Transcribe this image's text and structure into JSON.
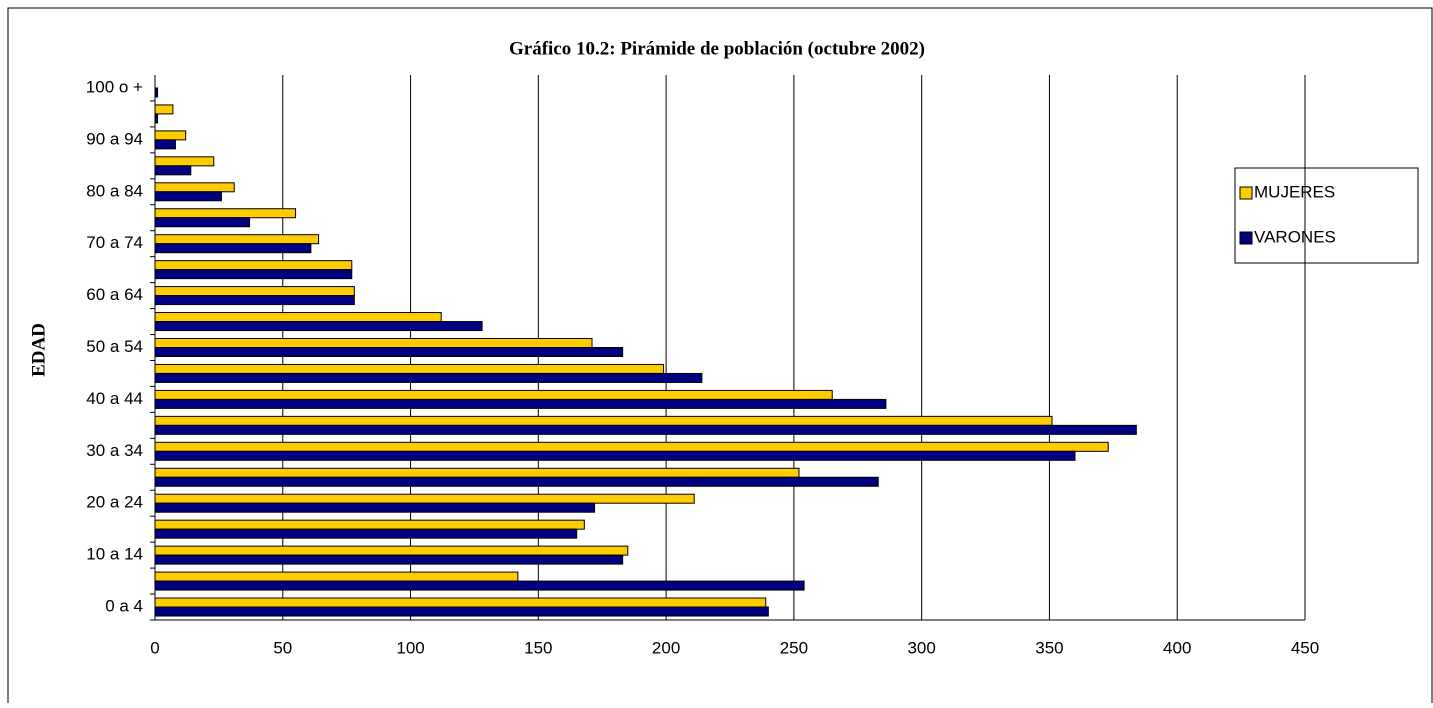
{
  "chart_data": {
    "type": "bar",
    "orientation": "horizontal",
    "title": "Gráfico 10.2: Pirámide de población (octubre 2002)",
    "y_label": "EDAD",
    "categories": [
      "0 a 4",
      null,
      "10 a 14",
      null,
      "20 a 24",
      null,
      "30 a 34",
      null,
      "40 a 44",
      null,
      "50 a 54",
      null,
      "60 a 64",
      null,
      "70 a 74",
      null,
      "80 a 84",
      null,
      "90 a 94",
      null,
      "100 o +"
    ],
    "series": [
      {
        "name": "MUJERES",
        "color": "#ffcc00",
        "values": [
          239,
          142,
          185,
          168,
          211,
          252,
          373,
          351,
          265,
          199,
          171,
          112,
          78,
          77,
          64,
          55,
          31,
          23,
          12,
          7,
          0
        ]
      },
      {
        "name": "VARONES",
        "color": "#000080",
        "values": [
          240,
          254,
          183,
          165,
          172,
          283,
          360,
          384,
          286,
          214,
          183,
          128,
          78,
          77,
          61,
          37,
          26,
          14,
          8,
          1,
          1
        ]
      }
    ],
    "xlim": [
      0,
      450
    ],
    "xticks": [
      0,
      50,
      100,
      150,
      200,
      250,
      300,
      350,
      400,
      450
    ],
    "grid": true,
    "legend": "right"
  }
}
